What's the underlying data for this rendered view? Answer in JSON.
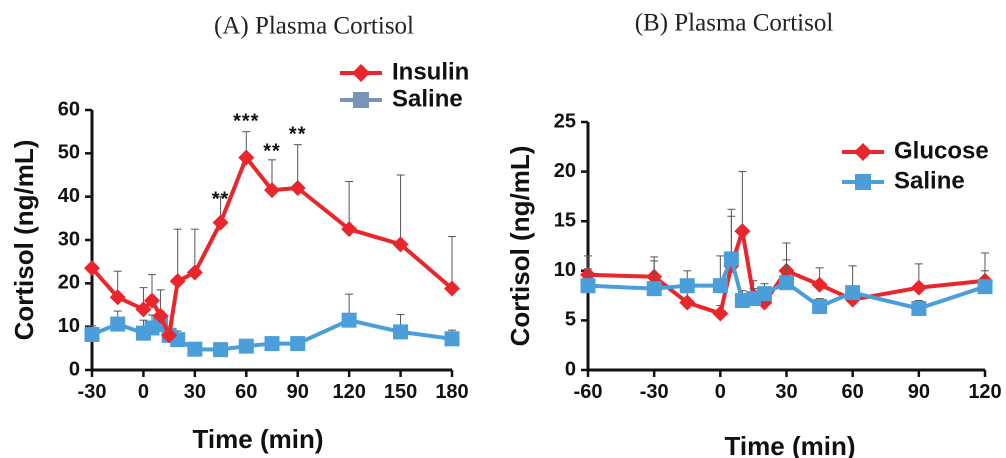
{
  "chart_data": [
    {
      "type": "line",
      "title": "(A) Plasma Cortisol",
      "xlabel": "Time (min)",
      "ylabel": "Cortisol (ng/mL)",
      "xlim": [
        -30,
        180
      ],
      "ylim": [
        0,
        60
      ],
      "xticks": [
        "-30",
        "0",
        "30",
        "60",
        "90",
        "120",
        "150",
        "180"
      ],
      "yticks": [
        "0",
        "10",
        "20",
        "30",
        "40",
        "50",
        "60"
      ],
      "legend_position": "top-right",
      "series": [
        {
          "name": "Insulin",
          "color": "#e8262c",
          "marker": "diamond",
          "x": [
            -30,
            -15,
            0,
            5,
            10,
            15,
            20,
            30,
            45,
            60,
            75,
            90,
            120,
            150,
            180
          ],
          "y": [
            23.5,
            16.8,
            14,
            16,
            12.5,
            8,
            20.5,
            22.5,
            34,
            49,
            41.5,
            42,
            32.5,
            29,
            18.8
          ],
          "err": [
            0,
            6,
            5,
            6,
            6,
            0,
            12,
            10,
            6,
            6,
            7,
            10,
            11,
            16,
            12
          ]
        },
        {
          "name": "Saline",
          "color": "#4a9fdb",
          "legend_color": "#7a93b8",
          "marker": "square",
          "x": [
            -30,
            -15,
            0,
            5,
            10,
            15,
            20,
            30,
            45,
            60,
            75,
            90,
            120,
            150,
            180
          ],
          "y": [
            8.2,
            10.6,
            8.5,
            9.7,
            10.5,
            8,
            7,
            4.8,
            4.7,
            5.5,
            6.1,
            6.1,
            11.5,
            8.8,
            7.2
          ],
          "err": [
            2,
            3,
            3,
            3,
            3,
            2,
            2,
            1,
            1,
            1,
            1,
            1,
            6,
            4,
            2
          ]
        }
      ],
      "annotations": [
        {
          "text": "**",
          "x": 45,
          "y": 38
        },
        {
          "text": "***",
          "x": 60,
          "y": 56
        },
        {
          "text": "**",
          "x": 75,
          "y": 49
        },
        {
          "text": "**",
          "x": 90,
          "y": 53
        }
      ]
    },
    {
      "type": "line",
      "title": "(B) Plasma Cortisol",
      "xlabel": "Time (min)",
      "ylabel": "Cortisol (ng/mL)",
      "xlim": [
        -60,
        120
      ],
      "ylim": [
        0,
        25
      ],
      "xticks": [
        "-60",
        "-30",
        "0",
        "30",
        "60",
        "90",
        "120"
      ],
      "yticks": [
        "0",
        "5",
        "10",
        "15",
        "20",
        "25"
      ],
      "legend_position": "top-right",
      "series": [
        {
          "name": "Glucose",
          "color": "#e8262c",
          "marker": "diamond",
          "x": [
            -60,
            -30,
            -15,
            0,
            5,
            10,
            15,
            20,
            30,
            45,
            60,
            90,
            120
          ],
          "y": [
            9.6,
            9.4,
            6.8,
            5.7,
            10.5,
            14,
            7.5,
            6.8,
            10,
            8.6,
            7.1,
            8.3,
            9
          ],
          "err": [
            0.6,
            2,
            1,
            0.8,
            5,
            6,
            1.5,
            1,
            2.8,
            1.7,
            1,
            2.4,
            2.8
          ]
        },
        {
          "name": "Saline",
          "color": "#4a9fdb",
          "legend_color": "#4a9fdb",
          "marker": "square",
          "x": [
            -60,
            -30,
            -15,
            0,
            5,
            10,
            15,
            20,
            30,
            45,
            60,
            90,
            120
          ],
          "y": [
            8.5,
            8.2,
            8.5,
            8.5,
            11.2,
            7,
            7.2,
            7.7,
            8.8,
            6.4,
            7.8,
            6.2,
            8.4
          ],
          "err": [
            3,
            2.8,
            1.5,
            3,
            5,
            1,
            1,
            1,
            2.3,
            0.8,
            2.7,
            0.8,
            1.6
          ]
        }
      ],
      "annotations": []
    }
  ]
}
